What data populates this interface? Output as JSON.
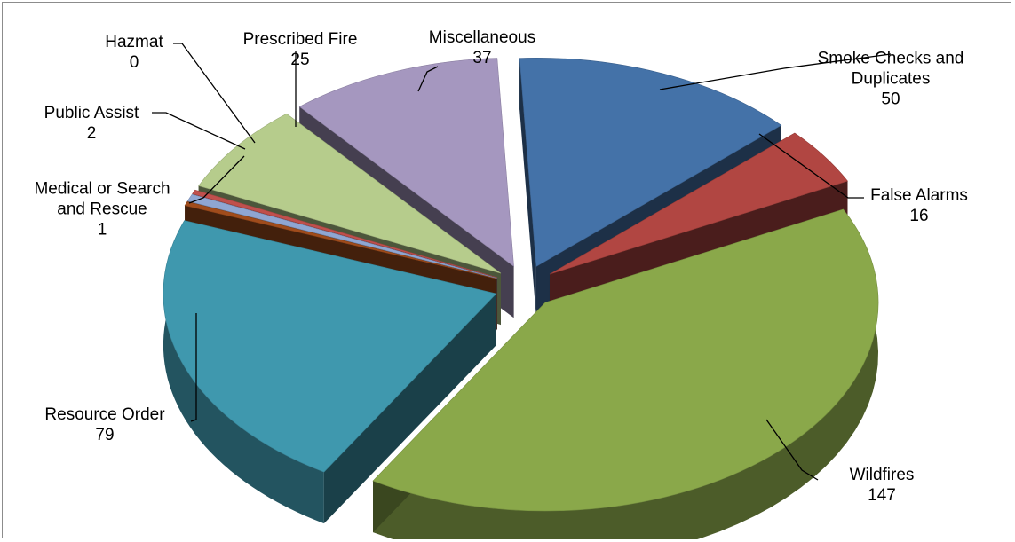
{
  "chart_data": {
    "type": "pie",
    "title": "",
    "style": "3d-exploded",
    "slices": [
      {
        "name_lines": [
          "Smoke Checks and",
          "Duplicates"
        ],
        "value": 50,
        "color": "#4472a8"
      },
      {
        "name_lines": [
          "False Alarms"
        ],
        "value": 16,
        "color": "#b14642"
      },
      {
        "name_lines": [
          "Wildfires"
        ],
        "value": 147,
        "color": "#8aa84a"
      },
      {
        "name_lines": [
          "Resource Order"
        ],
        "value": 79,
        "color": "#3f98ae"
      },
      {
        "name_lines": [
          "Medical or Search",
          "and Rescue"
        ],
        "value": 1,
        "color": "#a04c1c"
      },
      {
        "name_lines": [
          "Public Assist"
        ],
        "value": 2,
        "color": "#8fa6d2"
      },
      {
        "name_lines": [
          "Hazmat"
        ],
        "value": 0,
        "color": "#c0504d"
      },
      {
        "name_lines": [
          "Prescribed Fire"
        ],
        "value": 25,
        "color": "#b6cc8c"
      },
      {
        "name_lines": [
          "Miscellaneous"
        ],
        "value": 37,
        "color": "#a597bf"
      }
    ]
  }
}
